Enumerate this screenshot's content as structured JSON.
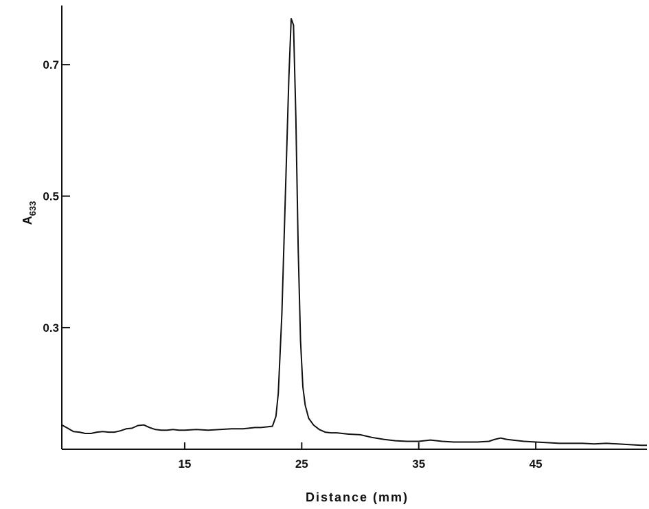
{
  "chart_data": {
    "type": "line",
    "title": "",
    "xlabel": "Distance (mm)",
    "ylabel": "A",
    "ylabel_sub": "633",
    "xlim": [
      4.5,
      54.5
    ],
    "ylim": [
      0.115,
      0.79
    ],
    "x_ticks": [
      {
        "value": 15,
        "label": "15"
      },
      {
        "value": 25,
        "label": "25"
      },
      {
        "value": 35,
        "label": "35"
      },
      {
        "value": 45,
        "label": "45"
      }
    ],
    "y_ticks": [
      {
        "value": 0.3,
        "label": "0.3"
      },
      {
        "value": 0.5,
        "label": "0.5"
      },
      {
        "value": 0.7,
        "label": "0.7"
      }
    ],
    "grid": false,
    "series": [
      {
        "color": "#111111",
        "x": [
          4.5,
          5.0,
          5.5,
          6.0,
          6.5,
          7.0,
          7.5,
          8.0,
          8.5,
          9.0,
          9.5,
          10.0,
          10.5,
          11.0,
          11.5,
          12.0,
          12.5,
          13.0,
          13.5,
          14.0,
          14.5,
          15.0,
          16.0,
          17.0,
          18.0,
          19.0,
          20.0,
          21.0,
          21.5,
          22.0,
          22.5,
          22.8,
          23.0,
          23.3,
          23.6,
          23.9,
          24.1,
          24.3,
          24.5,
          24.7,
          24.9,
          25.1,
          25.3,
          25.6,
          26.0,
          26.5,
          27.0,
          27.5,
          28.0,
          29.0,
          30.0,
          31.0,
          32.0,
          33.0,
          34.0,
          35.0,
          36.0,
          37.0,
          38.0,
          39.0,
          40.0,
          41.0,
          41.5,
          42.0,
          42.5,
          43.0,
          44.0,
          45.0,
          46.0,
          47.0,
          48.0,
          49.0,
          50.0,
          51.0,
          52.0,
          53.0,
          54.0,
          54.5
        ],
        "y": [
          0.152,
          0.147,
          0.142,
          0.141,
          0.139,
          0.139,
          0.141,
          0.142,
          0.141,
          0.141,
          0.143,
          0.146,
          0.147,
          0.151,
          0.152,
          0.148,
          0.145,
          0.144,
          0.144,
          0.145,
          0.144,
          0.144,
          0.145,
          0.144,
          0.145,
          0.146,
          0.146,
          0.148,
          0.148,
          0.149,
          0.15,
          0.165,
          0.2,
          0.32,
          0.5,
          0.68,
          0.77,
          0.76,
          0.62,
          0.42,
          0.28,
          0.21,
          0.182,
          0.162,
          0.152,
          0.145,
          0.141,
          0.14,
          0.14,
          0.138,
          0.137,
          0.133,
          0.13,
          0.128,
          0.127,
          0.127,
          0.129,
          0.127,
          0.126,
          0.126,
          0.126,
          0.127,
          0.13,
          0.132,
          0.13,
          0.129,
          0.127,
          0.126,
          0.125,
          0.124,
          0.124,
          0.124,
          0.123,
          0.124,
          0.123,
          0.122,
          0.121,
          0.121
        ]
      }
    ]
  }
}
